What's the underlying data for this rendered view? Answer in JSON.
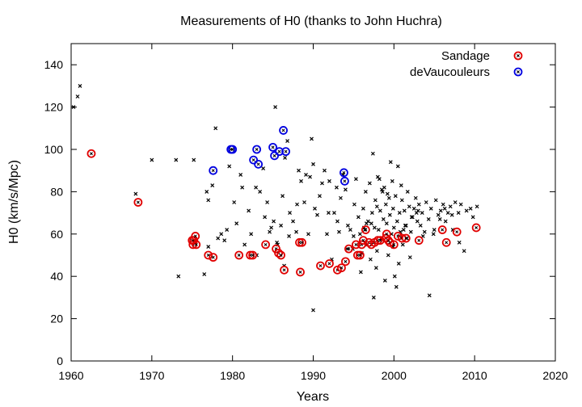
{
  "chart_data": {
    "type": "scatter",
    "title": "Measurements of H0 (thanks to John Huchra)",
    "xlabel": "Years",
    "ylabel": "H0 (km/s/Mpc)",
    "xlim": [
      1960,
      2020
    ],
    "ylim": [
      0,
      150
    ],
    "xticks": [
      1960,
      1970,
      1980,
      1990,
      2000,
      2010,
      2020
    ],
    "yticks": [
      0,
      20,
      40,
      60,
      80,
      100,
      120,
      140
    ],
    "legend": "top-right",
    "grid": false,
    "series": [
      {
        "name": "Sandage",
        "marker": "circle-with-cross",
        "color": "#e00000",
        "x": [
          1962.5,
          1968.3,
          1975.0,
          1975.1,
          1975.2,
          1975.4,
          1975.5,
          1977.0,
          1977.6,
          1980.8,
          1982.2,
          1982.5,
          1984.1,
          1985.4,
          1985.7,
          1986.0,
          1986.4,
          1988.3,
          1988.6,
          1988.4,
          1990.9,
          1992.0,
          1993.0,
          1993.5,
          1994.0,
          1994.4,
          1995.3,
          1995.5,
          1995.8,
          1996.0,
          1996.2,
          1996.5,
          1996.9,
          1997.2,
          1997.6,
          1998.0,
          1998.3,
          1999.0,
          1999.1,
          1999.3,
          1999.5,
          2000.0,
          2000.5,
          2001.0,
          2001.5,
          2003.1,
          2006.0,
          2006.5,
          2007.8,
          2010.2
        ],
        "y": [
          98,
          75,
          57,
          55,
          57,
          59,
          55,
          50,
          49,
          50,
          50,
          50,
          55,
          53,
          51,
          50,
          43,
          56,
          56,
          42,
          45,
          46,
          43,
          44,
          47,
          53,
          55,
          50,
          50,
          55,
          57,
          62,
          56,
          55,
          56,
          57,
          57,
          58,
          60,
          57,
          56,
          55,
          59,
          58,
          58,
          57,
          62,
          56,
          61,
          63
        ]
      },
      {
        "name": "deVaucouleurs",
        "marker": "circle-with-cross",
        "color": "#0000e0",
        "x": [
          1977.6,
          1979.8,
          1980.0,
          1982.6,
          1983.0,
          1983.2,
          1985.0,
          1985.2,
          1985.8,
          1986.3,
          1986.6,
          1993.8,
          1993.9
        ],
        "y": [
          90,
          100,
          100,
          95,
          100,
          93,
          101,
          97,
          99,
          109,
          99,
          89,
          85
        ]
      },
      {
        "name": "",
        "marker": "x",
        "color": "#000000",
        "x": [
          1960.3,
          1960.8,
          1961.1,
          1968.0,
          1970.0,
          1973.0,
          1973.3,
          1975.2,
          1976.5,
          1977.0,
          1977.5,
          1977.9,
          1977.0,
          1976.8,
          1978.6,
          1979.0,
          1979.3,
          1980.2,
          1980.5,
          1981.0,
          1981.5,
          1982.0,
          1982.3,
          1982.9,
          1983.4,
          1983.8,
          1984.0,
          1984.3,
          1984.6,
          1985.1,
          1985.3,
          1985.5,
          1986.0,
          1986.2,
          1986.5,
          1986.8,
          1987.1,
          1987.5,
          1987.9,
          1988.2,
          1988.5,
          1988.9,
          1989.1,
          1989.4,
          1989.8,
          1990.0,
          1990.2,
          1990.5,
          1990.8,
          1991.1,
          1991.4,
          1991.7,
          1992.0,
          1992.3,
          1992.6,
          1992.9,
          1993.2,
          1993.4,
          1993.7,
          1994.0,
          1994.3,
          1994.6,
          1994.9,
          1995.1,
          1995.3,
          1995.6,
          1995.8,
          1996.0,
          1996.2,
          1996.3,
          1996.5,
          1996.7,
          1996.8,
          1997.0,
          1997.1,
          1997.3,
          1997.4,
          1997.6,
          1997.7,
          1997.9,
          1998.0,
          1998.1,
          1998.3,
          1998.4,
          1998.6,
          1998.7,
          1998.9,
          1999.0,
          1999.1,
          1999.3,
          1999.4,
          1999.5,
          1999.7,
          1999.8,
          1999.9,
          2000.0,
          2000.1,
          2000.2,
          2000.4,
          2000.5,
          2000.7,
          2000.8,
          2001.0,
          2001.1,
          2001.3,
          2001.5,
          2001.7,
          2001.9,
          2002.1,
          2002.3,
          2002.5,
          2002.7,
          2002.9,
          2003.1,
          2003.3,
          2003.5,
          2003.8,
          2004.0,
          2004.3,
          2004.6,
          2004.9,
          2005.2,
          2005.5,
          2005.8,
          2006.1,
          2006.4,
          2006.7,
          2007.0,
          2007.3,
          2007.6,
          2008.0,
          2008.3,
          2008.7,
          2009.0,
          2009.5,
          2009.8,
          2010.3,
          1997.5,
          1998.8,
          2000.6,
          1990.0,
          1985.6,
          1986.4,
          1987.0,
          1995.9,
          1996.6,
          1997.8,
          1999.2,
          2000.3,
          2001.2,
          2002.0,
          2003.0,
          1998.2,
          1999.6,
          2000.9,
          2001.6,
          1996.4,
          1997.2,
          1995.0,
          1994.2,
          1993.0,
          1991.9,
          1989.6,
          1988.0,
          1984.8,
          1983.0,
          1981.2,
          1979.6,
          1978.2,
          1997.9,
          1998.5,
          1999.9,
          2000.7,
          2001.4,
          2002.2,
          2002.8,
          2003.6,
          2004.4,
          2005.0,
          2005.7,
          2006.3,
          2007.2,
          2008.1
        ],
        "y": [
          120,
          125,
          130,
          79,
          95,
          95,
          40,
          95,
          41,
          76,
          83,
          110,
          54,
          80,
          60,
          57,
          62,
          75,
          65,
          88,
          55,
          71,
          60,
          82,
          80,
          91,
          68,
          75,
          61,
          66,
          120,
          56,
          64,
          78,
          96,
          104,
          70,
          66,
          61,
          90,
          85,
          75,
          88,
          60,
          105,
          24,
          72,
          69,
          78,
          84,
          90,
          60,
          85,
          48,
          70,
          82,
          61,
          77,
          88,
          81,
          64,
          62,
          53,
          74,
          86,
          68,
          60,
          51,
          72,
          63,
          80,
          55,
          66,
          84,
          48,
          70,
          98,
          63,
          76,
          52,
          87,
          62,
          71,
          58,
          80,
          67,
          38,
          74,
          65,
          50,
          77,
          69,
          60,
          85,
          72,
          63,
          40,
          78,
          66,
          92,
          70,
          61,
          76,
          55,
          71,
          64,
          80,
          73,
          61,
          68,
          72,
          77,
          66,
          74,
          64,
          70,
          61,
          75,
          67,
          72,
          60,
          76,
          69,
          71,
          74,
          66,
          70,
          73,
          62,
          75,
          70,
          74,
          52,
          71,
          72,
          68,
          73,
          30,
          82,
          46,
          93,
          55,
          45,
          59,
          42,
          65,
          44,
          79,
          35,
          62,
          49,
          71,
          86,
          94,
          83,
          58,
          62,
          65,
          59,
          53,
          66,
          70,
          87,
          74,
          63,
          50,
          82,
          92,
          58,
          73,
          81,
          54,
          59,
          64,
          68,
          70,
          59,
          31,
          62,
          67,
          72,
          69,
          56
        ]
      }
    ]
  }
}
